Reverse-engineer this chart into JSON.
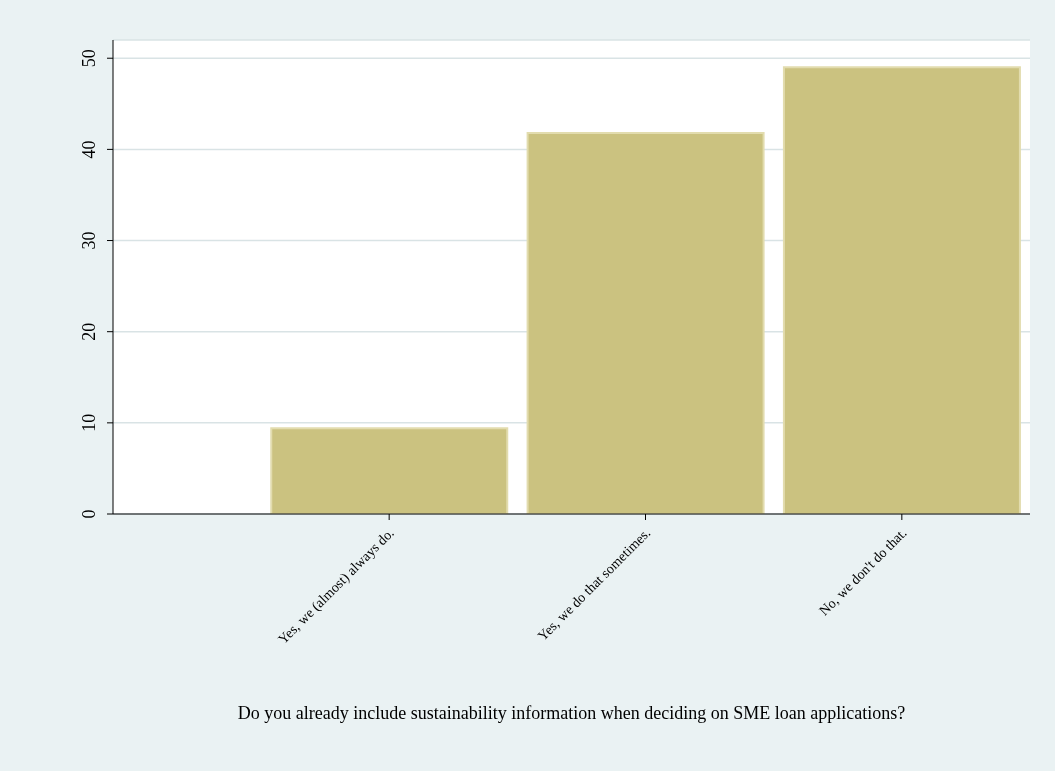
{
  "chart_data": {
    "type": "bar",
    "xlabel": "Do you already include sustainability information when deciding on SME loan applications?",
    "categories": [
      "Yes, we (almost) always do.",
      "Yes, we do that sometimes.",
      "No, we don't do that."
    ],
    "values": [
      9.4,
      41.8,
      49.0
    ],
    "color": "#cbc280",
    "ylim": [
      0,
      52
    ],
    "yticks": [
      0,
      10,
      20,
      30,
      40,
      50
    ],
    "grid": "y"
  }
}
